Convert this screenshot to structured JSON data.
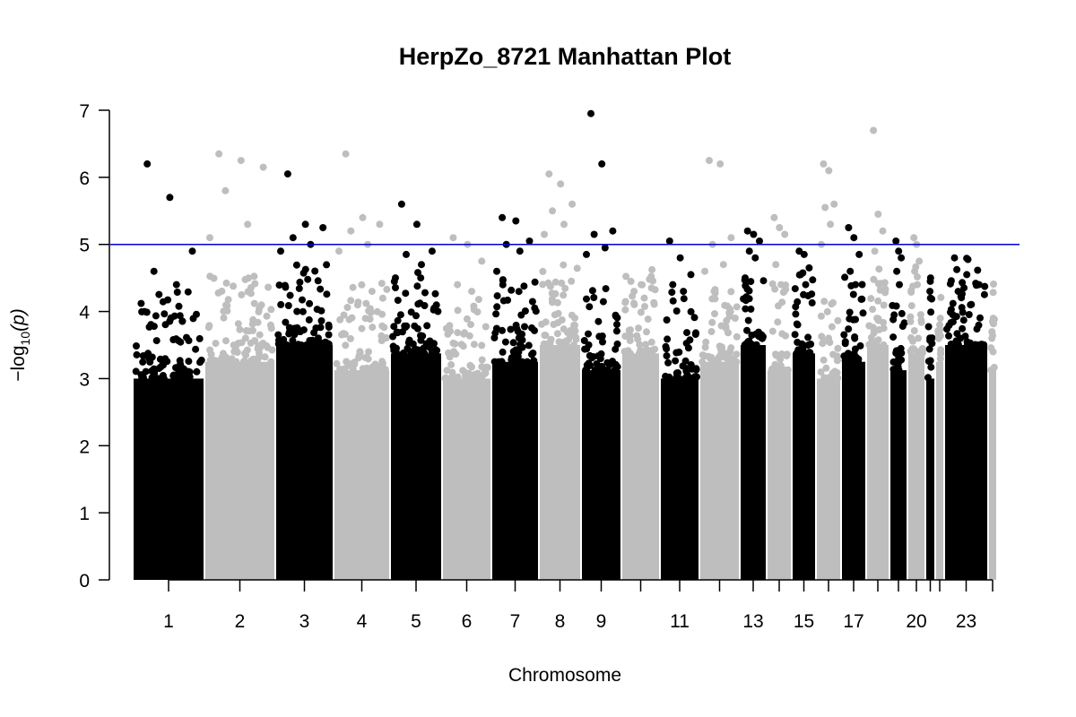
{
  "chart_data": {
    "type": "scatter",
    "title": "HerpZo_8721 Manhattan Plot",
    "xlabel": "Chromosome",
    "ylabel": "−log",
    "ylabel_sub": "10",
    "ylabel_var": "(p)",
    "ylim": [
      0,
      7
    ],
    "yticks": [
      "0",
      "1",
      "2",
      "3",
      "4",
      "5",
      "6",
      "7"
    ],
    "threshold": 5,
    "threshold_color": "#0000cc",
    "colors": [
      "#000000",
      "#bebebe"
    ],
    "grid": false,
    "legend": "none",
    "chromosomes": [
      {
        "chr": "1",
        "label": "1",
        "top_hits": [
          6.2,
          5.7,
          4.9,
          4.6,
          4.4
        ]
      },
      {
        "chr": "2",
        "label": "2",
        "top_hits": [
          6.35,
          6.25,
          6.15,
          5.8,
          5.3,
          5.1
        ]
      },
      {
        "chr": "3",
        "label": "3",
        "top_hits": [
          6.05,
          5.3,
          5.25,
          5.1,
          5.0,
          4.9
        ]
      },
      {
        "chr": "4",
        "label": "4",
        "top_hits": [
          6.35,
          5.4,
          5.3,
          5.2,
          5.0,
          4.9
        ]
      },
      {
        "chr": "5",
        "label": "5",
        "top_hits": [
          5.6,
          5.3,
          4.9,
          4.85,
          4.7,
          4.5
        ]
      },
      {
        "chr": "6",
        "label": "6",
        "top_hits": [
          5.1,
          5.0,
          4.75,
          4.4,
          4.3
        ]
      },
      {
        "chr": "7",
        "label": "7",
        "top_hits": [
          5.4,
          5.35,
          5.05,
          5.0,
          4.9,
          4.6
        ]
      },
      {
        "chr": "8",
        "label": "8",
        "top_hits": [
          6.05,
          5.9,
          5.6,
          5.5,
          5.3,
          5.15
        ]
      },
      {
        "chr": "9",
        "label": "9",
        "top_hits": [
          6.95,
          6.2,
          5.2,
          5.15,
          4.95,
          4.85
        ]
      },
      {
        "chr": "10",
        "label": "",
        "top_hits": [
          4.45,
          4.4,
          4.35,
          4.3,
          4.2
        ]
      },
      {
        "chr": "11",
        "label": "11",
        "top_hits": [
          5.05,
          4.8,
          4.55,
          4.4,
          4.3
        ]
      },
      {
        "chr": "12",
        "label": "",
        "top_hits": [
          6.25,
          6.2,
          5.1,
          5.0,
          4.7,
          4.6
        ]
      },
      {
        "chr": "13",
        "label": "13",
        "top_hits": [
          5.2,
          5.15,
          5.05,
          4.9,
          4.8,
          4.5
        ]
      },
      {
        "chr": "14",
        "label": "",
        "top_hits": [
          5.4,
          5.25,
          5.15,
          4.7,
          4.4
        ]
      },
      {
        "chr": "15",
        "label": "15",
        "top_hits": [
          4.9,
          4.85,
          4.65,
          4.55,
          4.4
        ]
      },
      {
        "chr": "16",
        "label": "",
        "top_hits": [
          6.2,
          6.1,
          5.6,
          5.55,
          5.3,
          5.0
        ]
      },
      {
        "chr": "17",
        "label": "17",
        "top_hits": [
          5.25,
          5.1,
          4.85,
          4.6,
          4.4
        ]
      },
      {
        "chr": "18",
        "label": "",
        "top_hits": [
          6.7,
          5.45,
          5.2,
          4.9,
          4.4
        ]
      },
      {
        "chr": "19",
        "label": "",
        "top_hits": [
          5.05,
          4.9,
          4.8,
          4.6,
          4.4
        ]
      },
      {
        "chr": "20",
        "label": "20",
        "top_hits": [
          5.1,
          5.0,
          4.75,
          4.6,
          4.4
        ]
      },
      {
        "chr": "21",
        "label": "",
        "top_hits": [
          4.5,
          4.45,
          4.3,
          4.2
        ]
      },
      {
        "chr": "22",
        "label": "",
        "top_hits": [
          3.9,
          3.8,
          3.7
        ]
      },
      {
        "chr": "23",
        "label": "23",
        "top_hits": [
          4.8,
          4.55,
          4.4,
          4.3,
          4.1
        ]
      },
      {
        "chr": "24",
        "label": "",
        "top_hits": [
          3.9,
          3.85,
          3.6,
          3.4
        ]
      }
    ]
  }
}
